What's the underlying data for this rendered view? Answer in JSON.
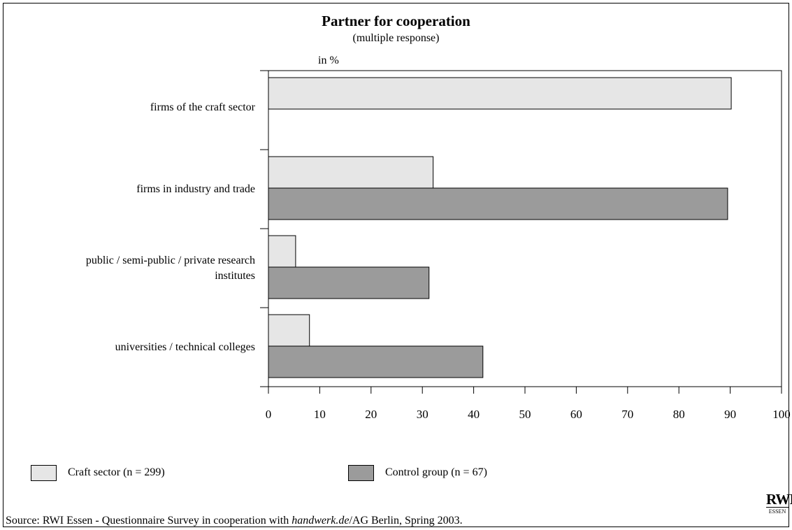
{
  "chart_data": {
    "type": "bar",
    "orientation": "horizontal",
    "title": "Partner for cooperation",
    "subtitle": "(multiple response)",
    "unit_label": "in %",
    "categories": [
      "firms of the craft sector",
      "firms in industry and trade",
      "public / semi-public / private research institutes",
      "universities / technical colleges"
    ],
    "category_lines": [
      [
        "firms of the craft sector"
      ],
      [
        "firms in industry and trade"
      ],
      [
        "public / semi-public / private research",
        "institutes"
      ],
      [
        "universities / technical colleges"
      ]
    ],
    "series": [
      {
        "name": "Craft sector (n = 299)",
        "values": [
          90.2,
          32.1,
          5.3,
          8.0
        ],
        "color": "#e6e6e6"
      },
      {
        "name": "Control group (n = 67)",
        "values": [
          null,
          89.5,
          31.3,
          41.8
        ],
        "color": "#9b9b9b"
      }
    ],
    "xlim": [
      0,
      100
    ],
    "xticks": [
      "0",
      "10",
      "20",
      "30",
      "40",
      "50",
      "60",
      "70",
      "80",
      "90",
      "100"
    ],
    "grid": false,
    "legend_position": "bottom"
  },
  "source": {
    "prefix": "Source: RWI Essen - Questionnaire Survey in cooperation with ",
    "italic": "handwerk.de",
    "suffix": "/AG Berlin, Spring 2003."
  },
  "logo": {
    "main": "RWI",
    "sub": "ESSEN"
  }
}
